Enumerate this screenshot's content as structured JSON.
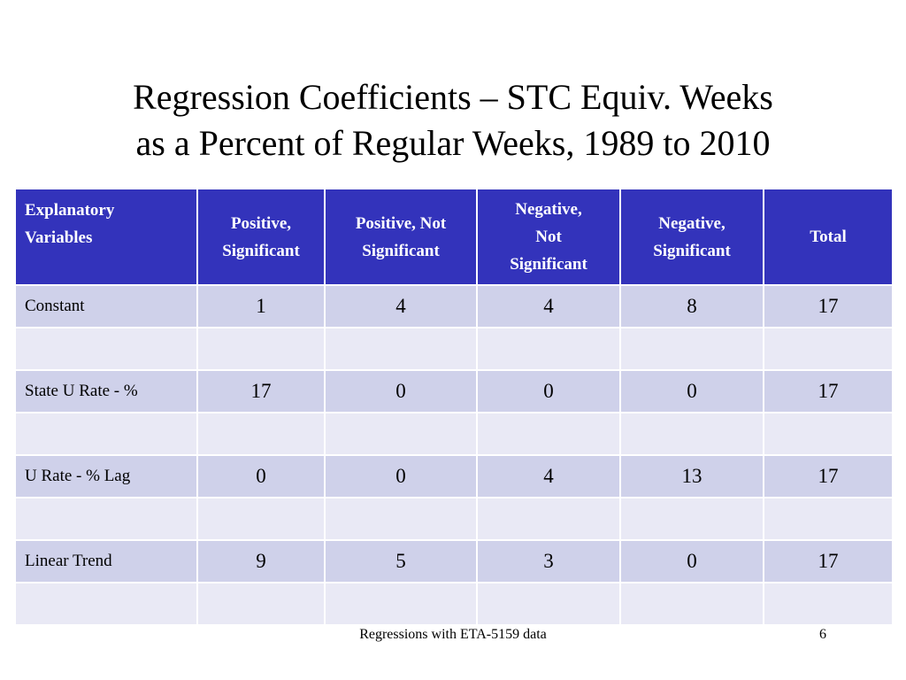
{
  "title": {
    "line1": "Regression Coefficients – STC Equiv. Weeks",
    "line2": "as a Percent of Regular Weeks, 1989 to 2010"
  },
  "table": {
    "headers": [
      [
        "Explanatory",
        "Variables"
      ],
      [
        "Positive,",
        "Significant"
      ],
      [
        "Positive, Not",
        "Significant"
      ],
      [
        "Negative,",
        "Not",
        "Significant"
      ],
      [
        "Negative,",
        "Significant"
      ],
      [
        "Total"
      ]
    ],
    "rows": [
      [
        "Constant",
        "1",
        "4",
        "4",
        "8",
        "17"
      ],
      [
        "",
        "",
        "",
        "",
        "",
        ""
      ],
      [
        "State U Rate - %",
        "17",
        "0",
        "0",
        "0",
        "17"
      ],
      [
        "",
        "",
        "",
        "",
        "",
        ""
      ],
      [
        "U Rate - % Lag",
        "0",
        "0",
        "4",
        "13",
        "17"
      ],
      [
        "",
        "",
        "",
        "",
        "",
        ""
      ],
      [
        "Linear Trend",
        "9",
        "5",
        "3",
        "0",
        "17"
      ],
      [
        "",
        "",
        "",
        "",
        "",
        ""
      ]
    ]
  },
  "footer": {
    "text": "Regressions with ETA-5159 data",
    "page_number": "6"
  },
  "colors": {
    "header_bg": "#3333bb",
    "data_row_bg": "#cfd1ea",
    "blank_row_bg": "#e9e9f5"
  }
}
